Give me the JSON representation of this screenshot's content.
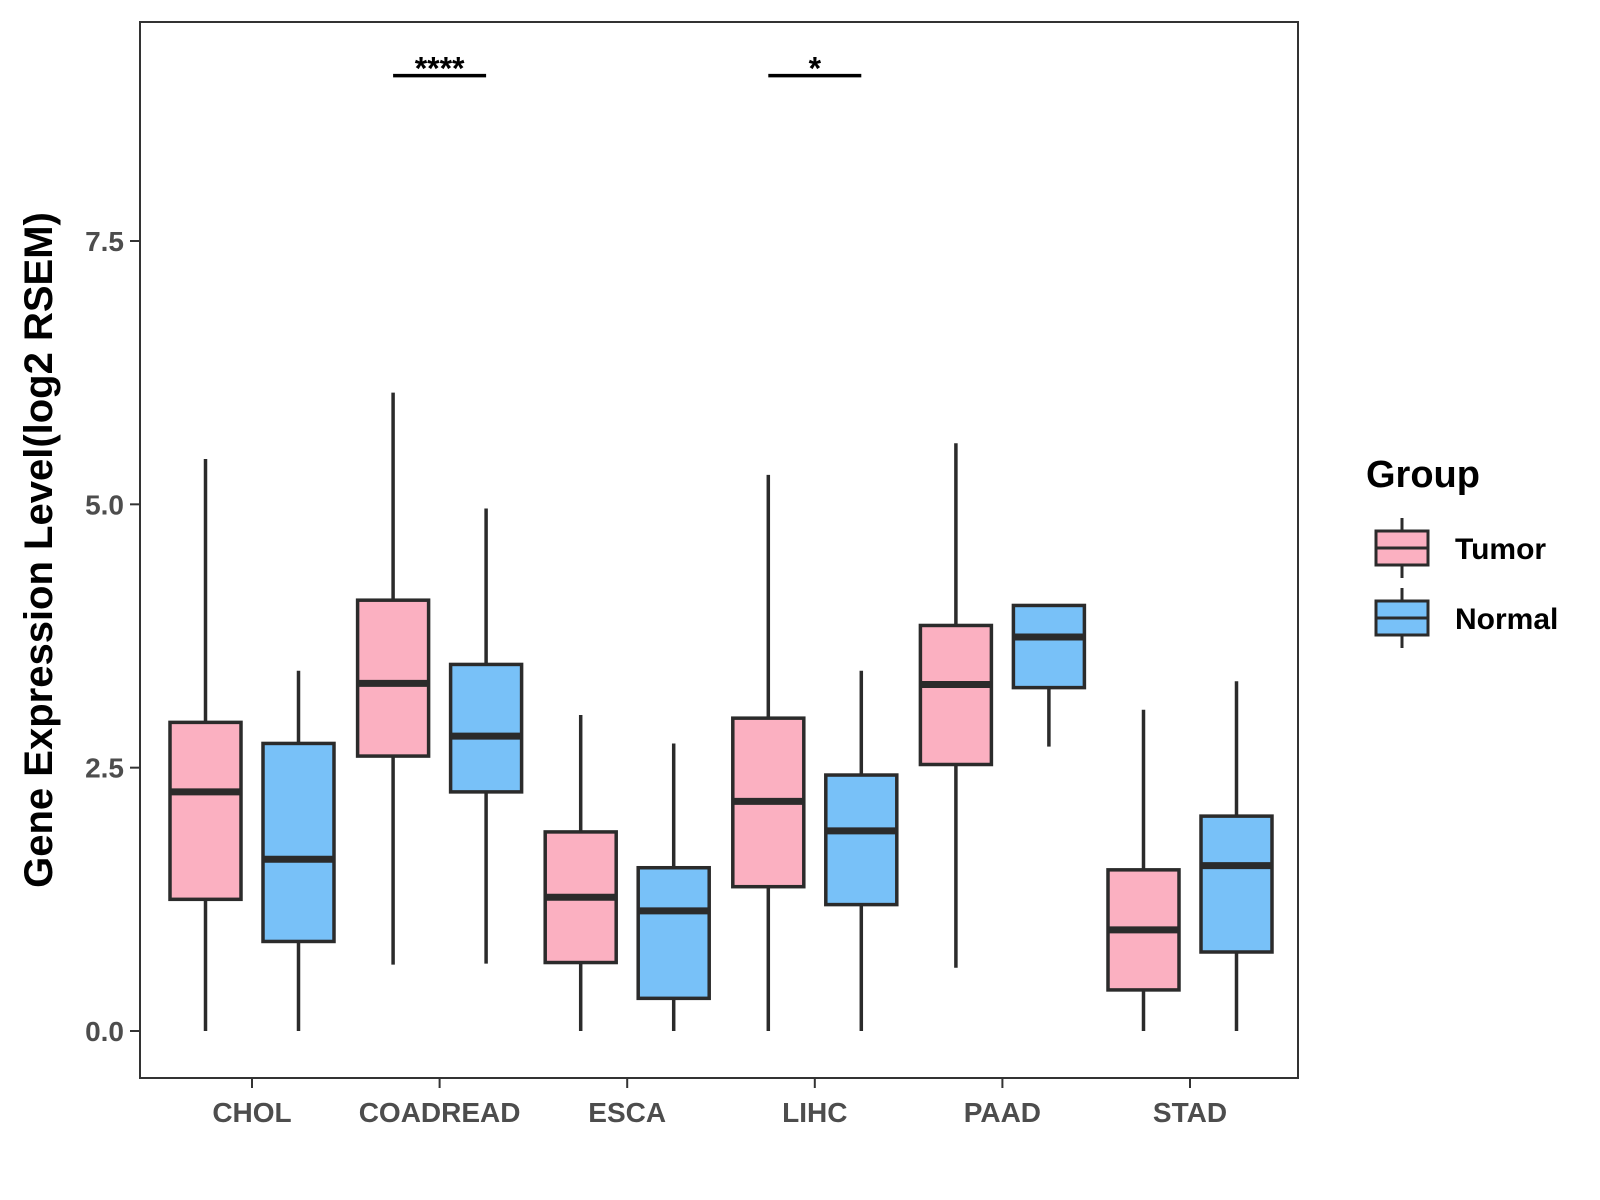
{
  "chart_data": {
    "type": "boxplot",
    "title": "",
    "xlabel": "",
    "ylabel": "Gene Expression Level(log2 RSEM)",
    "ylim": [
      -0.45,
      9.55
    ],
    "y_ticks": [
      0.0,
      2.5,
      5.0,
      7.5
    ],
    "y_tick_labels": [
      "0.0",
      "2.5",
      "5.0",
      "7.5"
    ],
    "grid": false,
    "legend": {
      "title": "Group",
      "position": "right",
      "entries": [
        {
          "name": "Tumor",
          "color": "#fbb0c1"
        },
        {
          "name": "Normal",
          "color": "#78c1f8"
        }
      ]
    },
    "categories": [
      "CHOL",
      "COADREAD",
      "ESCA",
      "LIHC",
      "PAAD",
      "STAD"
    ],
    "series": [
      {
        "name": "Tumor",
        "color": "#fbb0c1",
        "boxes": [
          {
            "min": 0.0,
            "q1": 1.25,
            "median": 2.27,
            "q3": 2.93,
            "max": 5.43
          },
          {
            "min": 0.63,
            "q1": 2.61,
            "median": 3.3,
            "q3": 4.09,
            "max": 6.06
          },
          {
            "min": 0.0,
            "q1": 0.65,
            "median": 1.27,
            "q3": 1.89,
            "max": 3.0
          },
          {
            "min": 0.0,
            "q1": 1.37,
            "median": 2.18,
            "q3": 2.97,
            "max": 5.28
          },
          {
            "min": 0.6,
            "q1": 2.53,
            "median": 3.29,
            "q3": 3.85,
            "max": 5.58
          },
          {
            "min": 0.0,
            "q1": 0.39,
            "median": 0.96,
            "q3": 1.53,
            "max": 3.05
          }
        ]
      },
      {
        "name": "Normal",
        "color": "#78c1f8",
        "boxes": [
          {
            "min": 0.0,
            "q1": 0.85,
            "median": 1.63,
            "q3": 2.73,
            "max": 3.42
          },
          {
            "min": 0.64,
            "q1": 2.27,
            "median": 2.8,
            "q3": 3.48,
            "max": 4.96
          },
          {
            "min": 0.0,
            "q1": 0.31,
            "median": 1.14,
            "q3": 1.55,
            "max": 2.73
          },
          {
            "min": 0.0,
            "q1": 1.2,
            "median": 1.9,
            "q3": 2.43,
            "max": 3.42
          },
          {
            "min": 2.7,
            "q1": 3.26,
            "median": 3.74,
            "q3": 4.04,
            "max": 4.04
          },
          {
            "min": 0.0,
            "q1": 0.75,
            "median": 1.57,
            "q3": 2.04,
            "max": 3.32
          }
        ]
      }
    ],
    "annotations": [
      {
        "category": "COADREAD",
        "label": "****",
        "y": 9.07
      },
      {
        "category": "LIHC",
        "label": "*",
        "y": 9.07
      }
    ]
  }
}
